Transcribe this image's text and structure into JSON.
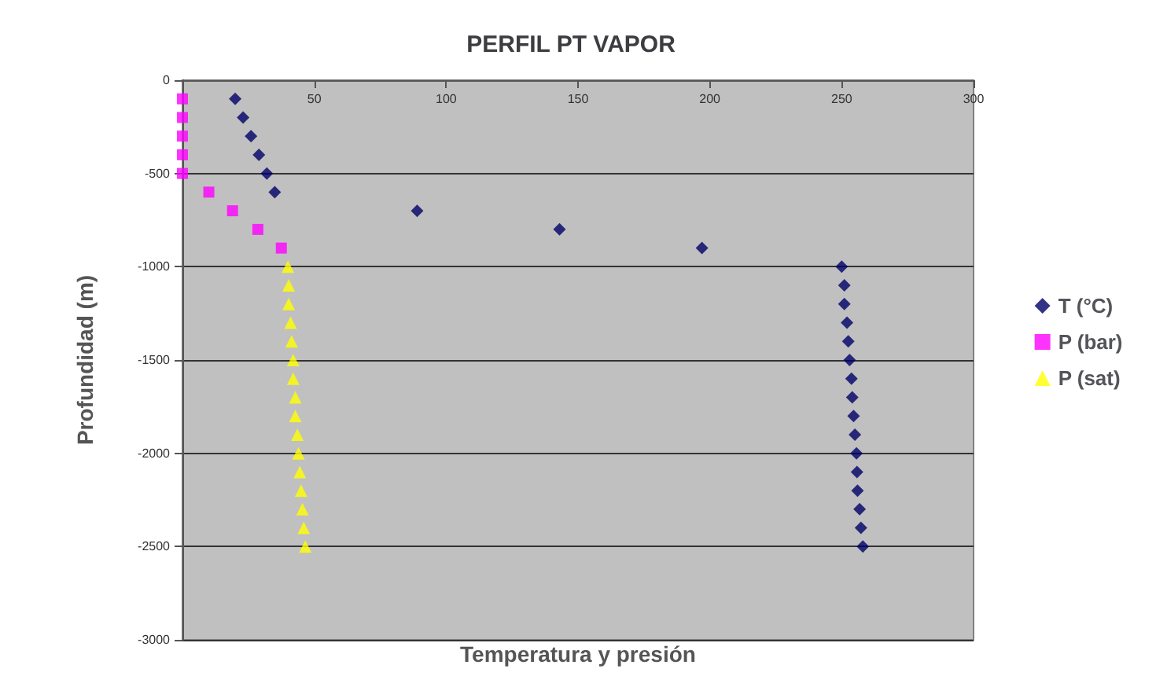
{
  "chart_data": {
    "type": "scatter",
    "title": "PERFIL PT VAPOR",
    "xlabel": "Temperatura y presión",
    "ylabel": "Profundidad (m)",
    "xlim": [
      0,
      300
    ],
    "xticks": [
      50,
      100,
      150,
      200,
      250,
      300
    ],
    "ylim": [
      -3000,
      0
    ],
    "yticks": [
      -3000,
      -2500,
      -2000,
      -1500,
      -1000,
      -500,
      0
    ],
    "grid": "y",
    "legend": "right",
    "series": [
      {
        "name": "T (°C)",
        "color": "#000066",
        "marker": "diamond",
        "x": [
          20,
          23,
          26,
          29,
          32,
          35,
          89,
          143,
          197,
          250,
          251,
          251,
          252,
          252.5,
          253,
          253.7,
          254,
          254.5,
          255,
          255.6,
          255.8,
          256,
          256.8,
          257.3,
          258
        ],
        "values": [
          -100,
          -200,
          -300,
          -400,
          -500,
          -600,
          -700,
          -800,
          -900,
          -1000,
          -1100,
          -1200,
          -1300,
          -1400,
          -1500,
          -1600,
          -1700,
          -1800,
          -1900,
          -2000,
          -2100,
          -2200,
          -2300,
          -2400,
          -2500
        ]
      },
      {
        "name": "P (bar)",
        "color": "#ff00ff",
        "marker": "square",
        "x": [
          0,
          0,
          0,
          0,
          0,
          10,
          19,
          28.6,
          37.5
        ],
        "values": [
          -100,
          -200,
          -300,
          -400,
          -500,
          -600,
          -700,
          -800,
          -900
        ]
      },
      {
        "name": "P (sat)",
        "color": "#ffff00",
        "marker": "triangle",
        "x": [
          40,
          40.3,
          40.3,
          41,
          41.4,
          42,
          42,
          42.8,
          42.8,
          43.6,
          44,
          44.5,
          45,
          45.5,
          46,
          46.6
        ],
        "values": [
          -1000,
          -1100,
          -1200,
          -1300,
          -1400,
          -1500,
          -1600,
          -1700,
          -1800,
          -1900,
          -2000,
          -2100,
          -2200,
          -2300,
          -2400,
          -2500
        ]
      }
    ]
  }
}
